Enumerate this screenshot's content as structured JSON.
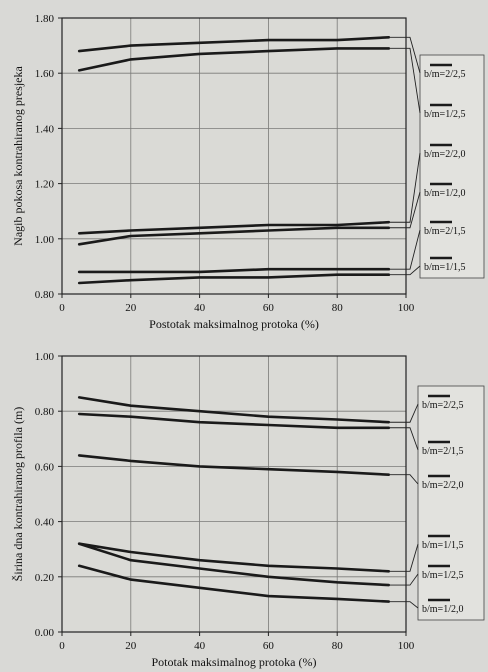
{
  "chart_data": [
    {
      "type": "line",
      "xlabel": "Postotak maksimalnog protoka (%)",
      "ylabel": "Nagib pokosa kontrahiranog presjeka",
      "xlim": [
        0,
        100
      ],
      "ylim": [
        0.8,
        1.8
      ],
      "x_ticks": [
        "0",
        "20",
        "40",
        "60",
        "80",
        "100"
      ],
      "y_ticks": [
        "0.80",
        "1.00",
        "1.20",
        "1.40",
        "1.60",
        "1.80"
      ],
      "grid": true,
      "legend_position": "right",
      "legend": [
        "b/m=2/2,5",
        "b/m=1/2,5",
        "b/m=2/2,0",
        "b/m=1/2,0",
        "b/m=2/1,5",
        "b/m=1/1,5"
      ],
      "series": [
        {
          "name": "b/m=2/2,5",
          "x": [
            5,
            20,
            40,
            60,
            80,
            95
          ],
          "values": [
            1.68,
            1.7,
            1.71,
            1.72,
            1.72,
            1.73
          ]
        },
        {
          "name": "b/m=1/2,5",
          "x": [
            5,
            20,
            40,
            60,
            80,
            95
          ],
          "values": [
            1.61,
            1.65,
            1.67,
            1.68,
            1.69,
            1.69
          ]
        },
        {
          "name": "b/m=2/2,0",
          "x": [
            5,
            20,
            40,
            60,
            80,
            95
          ],
          "values": [
            1.02,
            1.03,
            1.04,
            1.05,
            1.05,
            1.06
          ]
        },
        {
          "name": "b/m=1/2,0",
          "x": [
            5,
            20,
            40,
            60,
            80,
            95
          ],
          "values": [
            0.98,
            1.01,
            1.02,
            1.03,
            1.04,
            1.04
          ]
        },
        {
          "name": "b/m=2/1,5",
          "x": [
            5,
            20,
            40,
            60,
            80,
            95
          ],
          "values": [
            0.88,
            0.88,
            0.88,
            0.89,
            0.89,
            0.89
          ]
        },
        {
          "name": "b/m=1/1,5",
          "x": [
            5,
            20,
            40,
            60,
            80,
            95
          ],
          "values": [
            0.84,
            0.85,
            0.86,
            0.86,
            0.87,
            0.87
          ]
        }
      ]
    },
    {
      "type": "line",
      "xlabel": "Pototak maksimalnog protoka (%)",
      "ylabel": "Širina dna kontrahiranog profila (m)",
      "xlim": [
        0,
        100
      ],
      "ylim": [
        0.0,
        1.0
      ],
      "x_ticks": [
        "0",
        "20",
        "40",
        "60",
        "80",
        "100"
      ],
      "y_ticks": [
        "0.00",
        "0.20",
        "0.40",
        "0.60",
        "0.80",
        "1.00"
      ],
      "grid": true,
      "legend_position": "right",
      "legend": [
        "b/m=2/2,5",
        "b/m=2/1,5",
        "b/m=2/2,0",
        "b/m=1/1,5",
        "b/m=1/2,5",
        "b/m=1/2,0"
      ],
      "series": [
        {
          "name": "b/m=2/2,5",
          "x": [
            5,
            20,
            40,
            60,
            80,
            95
          ],
          "values": [
            0.85,
            0.82,
            0.8,
            0.78,
            0.77,
            0.76
          ]
        },
        {
          "name": "b/m=2/1,5",
          "x": [
            5,
            20,
            40,
            60,
            80,
            95
          ],
          "values": [
            0.79,
            0.78,
            0.76,
            0.75,
            0.74,
            0.74
          ]
        },
        {
          "name": "b/m=2/2,0",
          "x": [
            5,
            20,
            40,
            60,
            80,
            95
          ],
          "values": [
            0.64,
            0.62,
            0.6,
            0.59,
            0.58,
            0.57
          ]
        },
        {
          "name": "b/m=1/1,5",
          "x": [
            5,
            20,
            40,
            60,
            80,
            95
          ],
          "values": [
            0.32,
            0.29,
            0.26,
            0.24,
            0.23,
            0.22
          ]
        },
        {
          "name": "b/m=1/2,5",
          "x": [
            5,
            20,
            40,
            60,
            80,
            95
          ],
          "values": [
            0.32,
            0.26,
            0.23,
            0.2,
            0.18,
            0.17
          ]
        },
        {
          "name": "b/m=1/2,0",
          "x": [
            5,
            20,
            40,
            60,
            80,
            95
          ],
          "values": [
            0.24,
            0.19,
            0.16,
            0.13,
            0.12,
            0.11
          ]
        }
      ]
    }
  ]
}
